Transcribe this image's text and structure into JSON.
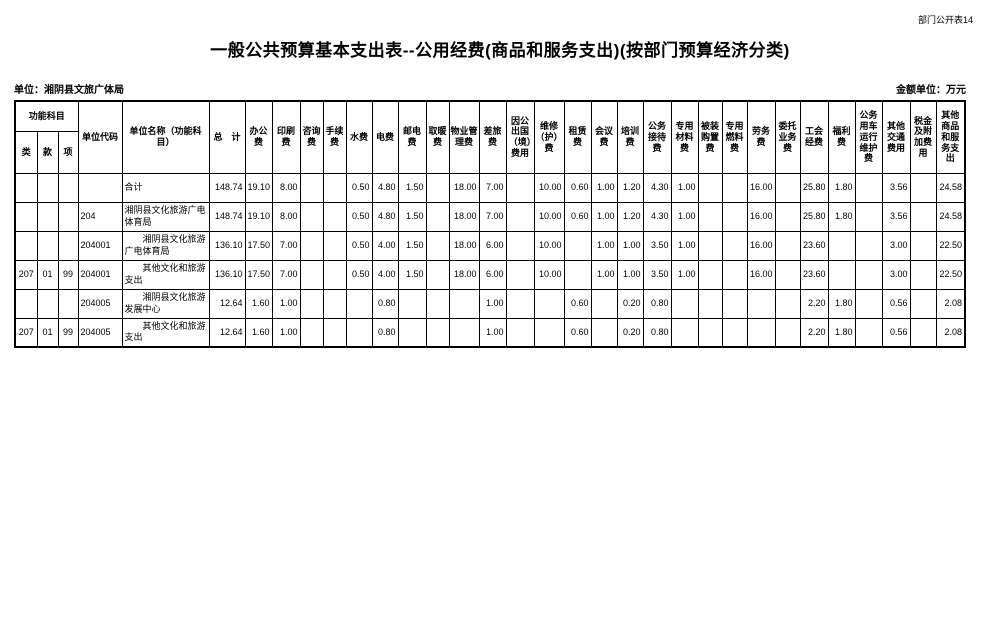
{
  "meta": {
    "table_ref": "部门公开表14",
    "title": "一般公共预算基本支出表--公用经费(商品和服务支出)(按部门预算经济分类)",
    "unit_label": "单位：湘阴县文旅广体局",
    "amount_unit_label": "金额单位：万元"
  },
  "table": {
    "header": {
      "func_group": "功能科目",
      "func_cols": [
        "类",
        "款",
        "项"
      ],
      "unit_code": "单位代码",
      "unit_name": "单位名称（功能科目）",
      "total": "总　计",
      "fee_cols": [
        "办公费",
        "印刷费",
        "咨询费",
        "手续费",
        "水费",
        "电费",
        "邮电费",
        "取暖费",
        "物业管理费",
        "差旅费",
        "因公出国（境）费用",
        "维修（护）费",
        "租赁费",
        "会议费",
        "培训费",
        "公务接待费",
        "专用材料费",
        "被装购置费",
        "专用燃料费",
        "劳务费",
        "委托业务费",
        "工会经费",
        "福利费",
        "公务用车运行维护费",
        "其他交通费用",
        "税金及附加费用",
        "其他商品和服务支出"
      ]
    },
    "rows": [
      {
        "lei": "",
        "kuan": "",
        "xiang": "",
        "code": "",
        "name": "合计",
        "values": [
          "148.74",
          "19.10",
          "8.00",
          "",
          "",
          "0.50",
          "4.80",
          "1.50",
          "",
          "18.00",
          "7.00",
          "",
          "10.00",
          "0.60",
          "1.00",
          "1.20",
          "4.30",
          "1.00",
          "",
          "",
          "16.00",
          "",
          "25.80",
          "1.80",
          "",
          "3.56",
          "",
          "24.58"
        ]
      },
      {
        "lei": "",
        "kuan": "",
        "xiang": "",
        "code": "204",
        "name": "湘阴县文化旅游广电体育局",
        "values": [
          "148.74",
          "19.10",
          "8.00",
          "",
          "",
          "0.50",
          "4.80",
          "1.50",
          "",
          "18.00",
          "7.00",
          "",
          "10.00",
          "0.60",
          "1.00",
          "1.20",
          "4.30",
          "1.00",
          "",
          "",
          "16.00",
          "",
          "25.80",
          "1.80",
          "",
          "3.56",
          "",
          "24.58"
        ]
      },
      {
        "lei": "",
        "kuan": "",
        "xiang": "",
        "code": "204001",
        "name": "　　湘阴县文化旅游广电体育局",
        "values": [
          "136.10",
          "17.50",
          "7.00",
          "",
          "",
          "0.50",
          "4.00",
          "1.50",
          "",
          "18.00",
          "6.00",
          "",
          "10.00",
          "",
          "1.00",
          "1.00",
          "3.50",
          "1.00",
          "",
          "",
          "16.00",
          "",
          "23.60",
          "",
          "",
          "3.00",
          "",
          "22.50"
        ]
      },
      {
        "lei": "207",
        "kuan": "01",
        "xiang": "99",
        "code": "204001",
        "name": "　　其他文化和旅游支出",
        "values": [
          "136.10",
          "17.50",
          "7.00",
          "",
          "",
          "0.50",
          "4.00",
          "1.50",
          "",
          "18.00",
          "6.00",
          "",
          "10.00",
          "",
          "1.00",
          "1.00",
          "3.50",
          "1.00",
          "",
          "",
          "16.00",
          "",
          "23.60",
          "",
          "",
          "3.00",
          "",
          "22.50"
        ]
      },
      {
        "lei": "",
        "kuan": "",
        "xiang": "",
        "code": "204005",
        "name": "　　湘阴县文化旅游发展中心",
        "values": [
          "12.64",
          "1.60",
          "1.00",
          "",
          "",
          "",
          "0.80",
          "",
          "",
          "",
          "1.00",
          "",
          "",
          "0.60",
          "",
          "0.20",
          "0.80",
          "",
          "",
          "",
          "",
          "",
          "2.20",
          "1.80",
          "",
          "0.56",
          "",
          "2.08"
        ]
      },
      {
        "lei": "207",
        "kuan": "01",
        "xiang": "99",
        "code": "204005",
        "name": "　　其他文化和旅游支出",
        "values": [
          "12.64",
          "1.60",
          "1.00",
          "",
          "",
          "",
          "0.80",
          "",
          "",
          "",
          "1.00",
          "",
          "",
          "0.60",
          "",
          "0.20",
          "0.80",
          "",
          "",
          "",
          "",
          "",
          "2.20",
          "1.80",
          "",
          "0.56",
          "",
          "2.08"
        ]
      }
    ]
  }
}
